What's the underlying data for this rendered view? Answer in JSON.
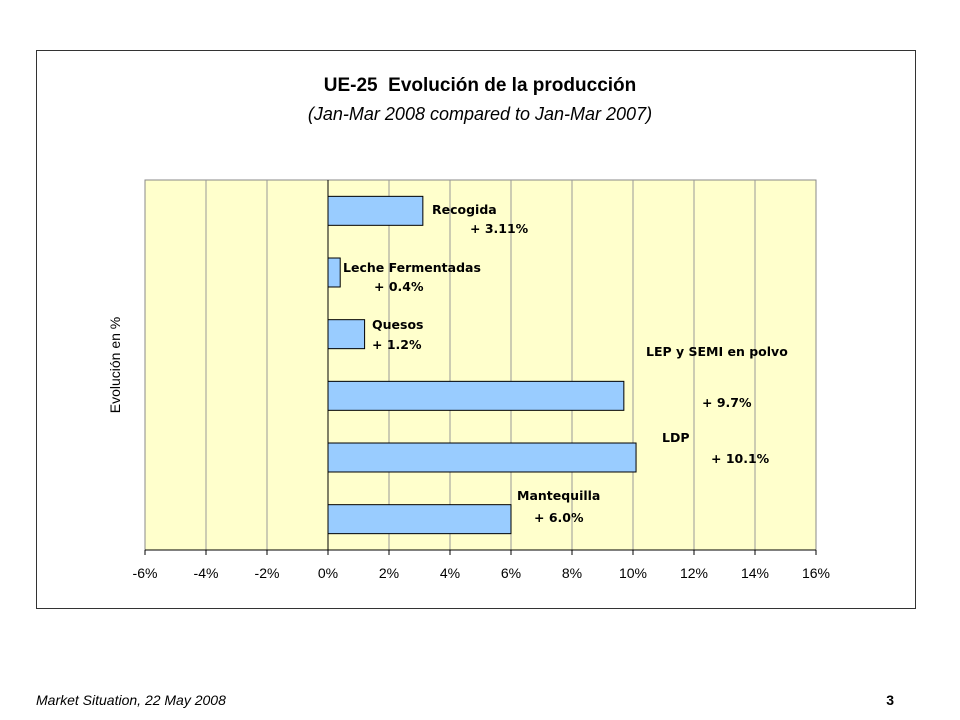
{
  "chart_data": {
    "type": "bar",
    "orientation": "horizontal",
    "title": "UE-25  Evolución de la producción",
    "subtitle": "(Jan-Mar 2008 compared to Jan-Mar 2007)",
    "xlabel": "",
    "ylabel": "Evolución en %",
    "xlim": [
      -6,
      16
    ],
    "xticks": [
      -6,
      -4,
      -2,
      0,
      2,
      4,
      6,
      8,
      10,
      12,
      14,
      16
    ],
    "tick_suffix": "%",
    "grid": true,
    "legend": "none",
    "colors": {
      "plot_background": "#FFFFCC",
      "bar_fill": "#99CCFF",
      "bar_stroke": "#000000",
      "gridline": "#999999"
    },
    "bars": [
      {
        "name": "Recogida",
        "value": 3.11,
        "label_value": "+ 3.11%"
      },
      {
        "name": "Leche Fermentadas",
        "value": 0.4,
        "label_value": "+ 0.4%"
      },
      {
        "name": "Quesos",
        "value": 1.2,
        "label_value": "+ 1.2%"
      },
      {
        "name": "LEP y SEMI en polvo",
        "value": 9.7,
        "label_value": "+ 9.7%"
      },
      {
        "name": "LDP",
        "value": 10.1,
        "label_value": "+ 10.1%"
      },
      {
        "name": "Mantequilla",
        "value": 6.0,
        "label_value": "+ 6.0%"
      }
    ]
  },
  "footer": {
    "source": "Market Situation, 22 May 2008",
    "page_number": "3"
  }
}
